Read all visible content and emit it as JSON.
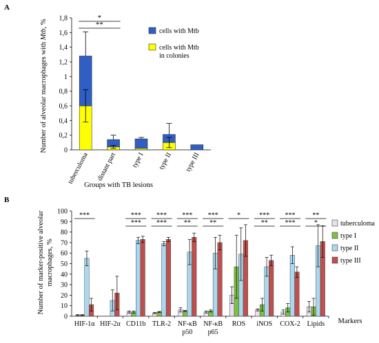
{
  "chart_data": [
    {
      "panel": "A",
      "type": "bar",
      "stacked": true,
      "categories": [
        "tuberculoma",
        "distant part",
        "type I",
        "type II",
        "type III"
      ],
      "ylabel": "Number of alveolar macrophages with Mtb, %",
      "xlabel": "Groups with TB lesions",
      "ylim": [
        0,
        1.8
      ],
      "yticks": [
        "0",
        "0,2",
        "0,4",
        "0,6",
        "0,8",
        "1",
        "1,2",
        "1,4",
        "1,6",
        "1,8"
      ],
      "series": [
        {
          "name": "cells with Mtb in colonies",
          "color": "#ffff00",
          "values": [
            0.6,
            0.04,
            0.02,
            0.1,
            0.0
          ],
          "errors": [
            0.22,
            0.02,
            0.0,
            0.07,
            0.0
          ]
        },
        {
          "name": "cells with Mtb",
          "color": "#2f5fc4",
          "values": [
            0.68,
            0.1,
            0.13,
            0.11,
            0.07
          ],
          "errors": [
            0.33,
            0.06,
            0.02,
            0.15,
            0.0
          ]
        }
      ],
      "significance": [
        {
          "label": "*",
          "from": 0,
          "to": 1
        },
        {
          "label": "**",
          "from": 0,
          "to": 1
        }
      ],
      "legend": "right"
    },
    {
      "panel": "B",
      "type": "bar",
      "categories": [
        "HIF-1α",
        "HIF-2α",
        "CD11b",
        "TLR-2",
        "NF-κB p50",
        "NF-κB p65",
        "ROS",
        "iNOS",
        "COX-2",
        "Lipids"
      ],
      "ylabel": "Number of marker-positive alveolar macrophages, %",
      "xlabel": "Markers",
      "ylim": [
        0,
        100
      ],
      "yticks": [
        "0",
        "10",
        "20",
        "30",
        "40",
        "50",
        "60",
        "70",
        "80",
        "90",
        "100"
      ],
      "series": [
        {
          "name": "tuberculoma",
          "color": "#e9e0ef",
          "values": [
            1,
            0,
            4,
            3,
            6,
            4,
            20,
            6,
            4,
            9
          ],
          "errors": [
            0.5,
            0,
            1,
            0.5,
            2,
            1,
            8,
            1,
            2,
            5
          ]
        },
        {
          "name": "type I",
          "color": "#7ac142",
          "values": [
            1,
            0,
            4,
            4,
            5,
            5,
            47,
            11,
            8,
            9
          ],
          "errors": [
            0.5,
            0,
            1,
            0.5,
            0.5,
            1,
            30,
            6,
            4,
            8
          ]
        },
        {
          "name": "type II",
          "color": "#a9d8f0",
          "values": [
            55,
            15,
            72,
            69,
            61,
            60,
            59,
            47,
            58,
            67
          ],
          "errors": [
            7,
            10,
            3,
            2,
            12,
            15,
            25,
            9,
            8,
            20
          ]
        },
        {
          "name": "type III",
          "color": "#c0504d",
          "values": [
            11,
            22,
            73,
            73,
            75,
            70,
            72,
            53,
            42,
            71
          ],
          "errors": [
            6,
            16,
            3,
            2,
            4,
            7,
            15,
            5,
            5,
            15
          ]
        }
      ],
      "significance": [
        {
          "label": "***",
          "cat": 0,
          "row": 0
        },
        {
          "label": "***",
          "cat": 2,
          "row": 0
        },
        {
          "label": "***",
          "cat": 2,
          "row": 1
        },
        {
          "label": "***",
          "cat": 3,
          "row": 0
        },
        {
          "label": "***",
          "cat": 3,
          "row": 1
        },
        {
          "label": "***",
          "cat": 4,
          "row": 0
        },
        {
          "label": "**",
          "cat": 4,
          "row": 1
        },
        {
          "label": "***",
          "cat": 5,
          "row": 0
        },
        {
          "label": "**",
          "cat": 5,
          "row": 1
        },
        {
          "label": "*",
          "cat": 6,
          "row": 0
        },
        {
          "label": "***",
          "cat": 7,
          "row": 0
        },
        {
          "label": "**",
          "cat": 7,
          "row": 1
        },
        {
          "label": "***",
          "cat": 8,
          "row": 0
        },
        {
          "label": "***",
          "cat": 8,
          "row": 1
        },
        {
          "label": "**",
          "cat": 9,
          "row": 0
        },
        {
          "label": "*",
          "cat": 9,
          "row": 1
        }
      ],
      "legend": "right"
    }
  ],
  "panel_labels": {
    "a": "A",
    "b": "B"
  },
  "panelA_text": {
    "ylabel_prefix": "Number of alveolar macrophages with ",
    "ylabel_italic": "Mtb",
    "ylabel_suffix": ", %",
    "legend_mtb": "cells with Mtb",
    "legend_colonies_1": "cells with Mtb",
    "legend_colonies_2": "in colonies"
  },
  "panelB_text": {
    "ylabel_1": "Number of marker-positive alveolar",
    "ylabel_2": "macrophages, %",
    "cat_lines": [
      [
        "HIF-1α"
      ],
      [
        "HIF-2α"
      ],
      [
        "CD11b"
      ],
      [
        "TLR-2"
      ],
      [
        "NF-κB",
        "p50"
      ],
      [
        "NF-κB",
        "p65"
      ],
      [
        "ROS"
      ],
      [
        "iNOS"
      ],
      [
        "COX-2"
      ],
      [
        "Lipids"
      ]
    ]
  }
}
